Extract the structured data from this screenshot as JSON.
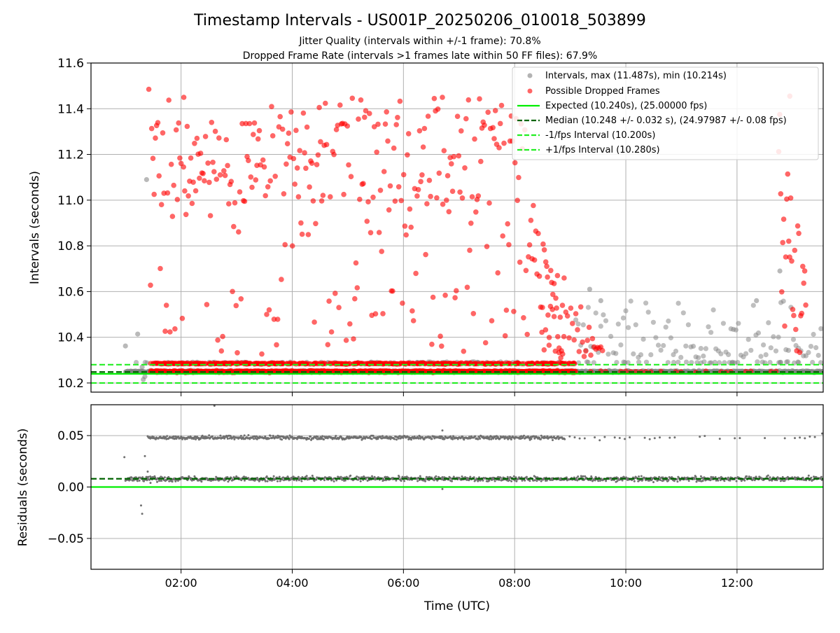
{
  "figure": {
    "title": "Timestamp Intervals - US001P_20250206_010018_503899",
    "subtitle_line1": "Jitter Quality (intervals within +/-1 frame): 70.8%",
    "subtitle_line2": "Dropped Frame Rate (intervals >1 frames late within 50 FF files): 67.9%"
  },
  "colors": {
    "intervals": "#808080",
    "dropped": "#ff0000",
    "expected": "#00ee00",
    "median": "#006400",
    "fps_bounds": "#22ee22",
    "residuals": "#707070",
    "grid": "#b0b0b0"
  },
  "chart_data": [
    {
      "type": "scatter",
      "panel": "intervals",
      "xlabel": "",
      "ylabel": "Intervals (seconds)",
      "xlim": [
        0.38,
        13.55
      ],
      "ylim": [
        10.16,
        11.6
      ],
      "yticks": [
        10.2,
        10.4,
        10.6,
        10.8,
        11.0,
        11.2,
        11.4,
        11.6
      ],
      "ytick_labels": [
        "10.2",
        "10.4",
        "10.6",
        "10.8",
        "11.0",
        "11.2",
        "11.4",
        "11.6"
      ],
      "grid": true,
      "legend_position": "top-right",
      "series": [
        {
          "name": "Intervals, max (11.487s), min (10.214s)",
          "marker": "circle"
        },
        {
          "name": "Possible Dropped Frames",
          "marker": "circle"
        },
        {
          "name": "Expected (10.240s), (25.00000 fps)",
          "line": "solid",
          "y": 10.24
        },
        {
          "name": "Median (10.248 +/- 0.032 s), (24.97987 +/- 0.08 fps)",
          "line": "dashed",
          "y": 10.248
        },
        {
          "name": "-1/fps Interval (10.200s)",
          "line": "dashed",
          "y": 10.2
        },
        {
          "name": "+1/fps Interval (10.280s)",
          "line": "dashed",
          "y": 10.28
        }
      ],
      "points": {
        "x_range_hours": [
          1.0,
          13.55
        ],
        "dense_band_y": 10.25,
        "secondary_band_y": 10.29,
        "dropped_cluster_x": [
          1.4,
          9.1
        ],
        "dropped_cluster_y": [
          10.29,
          11.45
        ],
        "late_cluster_x": [
          12.75,
          13.25
        ],
        "gray_scatter_after_x": 9.1,
        "gray_scatter_y": [
          10.26,
          10.6
        ]
      }
    },
    {
      "type": "scatter",
      "panel": "residuals",
      "xlabel": "Time (UTC)",
      "ylabel": "Residuals (seconds)",
      "xlim": [
        0.38,
        13.55
      ],
      "ylim": [
        -0.08,
        0.08
      ],
      "yticks": [
        0.05,
        0.0,
        -0.05
      ],
      "ytick_labels": [
        "0.05",
        "0.00",
        "−0.05"
      ],
      "xticks": [
        2,
        4,
        6,
        8,
        10,
        12
      ],
      "xtick_labels": [
        "02:00",
        "04:00",
        "06:00",
        "08:00",
        "10:00",
        "12:00"
      ],
      "grid": true,
      "reference_lines": {
        "expected": 0.0,
        "median": 0.008
      },
      "points": {
        "main_band_y": 0.008,
        "upper_band_y": 0.048,
        "x_range_hours": [
          1.0,
          13.55
        ]
      }
    }
  ]
}
